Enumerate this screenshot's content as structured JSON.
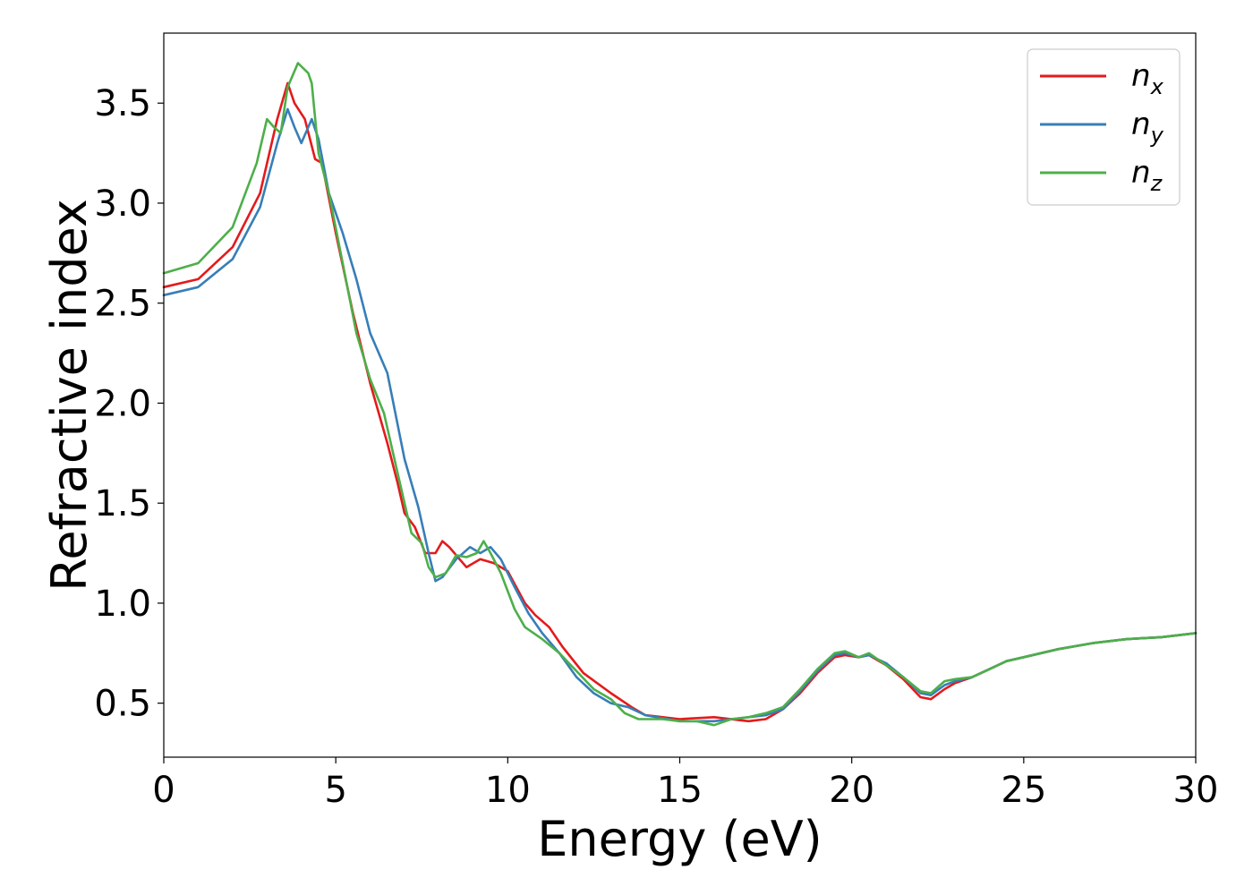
{
  "chart_data": {
    "type": "line",
    "title": "",
    "xlabel": "Energy (eV)",
    "ylabel": "Refractive index",
    "xlim": [
      0,
      30
    ],
    "ylim": [
      0.23,
      3.85
    ],
    "xticks": [
      0,
      5,
      10,
      15,
      20,
      25,
      30
    ],
    "xtick_labels": [
      "0",
      "5",
      "10",
      "15",
      "20",
      "25",
      "30"
    ],
    "yticks": [
      0.5,
      1.0,
      1.5,
      2.0,
      2.5,
      3.0,
      3.5
    ],
    "ytick_labels": [
      "0.5",
      "1.0",
      "1.5",
      "2.0",
      "2.5",
      "3.0",
      "3.5"
    ],
    "grid": false,
    "legend_position": "top-right",
    "series": [
      {
        "name": "n_x",
        "label_base": "n",
        "label_sub": "x",
        "color": "#e41a1c",
        "points": [
          [
            0,
            2.58
          ],
          [
            1,
            2.62
          ],
          [
            2,
            2.78
          ],
          [
            2.8,
            3.05
          ],
          [
            3.3,
            3.42
          ],
          [
            3.6,
            3.6
          ],
          [
            3.8,
            3.5
          ],
          [
            4.1,
            3.42
          ],
          [
            4.4,
            3.22
          ],
          [
            4.6,
            3.2
          ],
          [
            5,
            2.85
          ],
          [
            5.5,
            2.45
          ],
          [
            6,
            2.1
          ],
          [
            6.5,
            1.8
          ],
          [
            6.8,
            1.6
          ],
          [
            7.0,
            1.45
          ],
          [
            7.3,
            1.38
          ],
          [
            7.6,
            1.25
          ],
          [
            7.9,
            1.25
          ],
          [
            8.1,
            1.31
          ],
          [
            8.3,
            1.28
          ],
          [
            8.6,
            1.22
          ],
          [
            8.8,
            1.18
          ],
          [
            9.2,
            1.22
          ],
          [
            9.6,
            1.2
          ],
          [
            10,
            1.16
          ],
          [
            10.5,
            1.0
          ],
          [
            10.8,
            0.94
          ],
          [
            11.2,
            0.88
          ],
          [
            11.6,
            0.78
          ],
          [
            12.2,
            0.65
          ],
          [
            13,
            0.55
          ],
          [
            13.6,
            0.48
          ],
          [
            14,
            0.44
          ],
          [
            15,
            0.42
          ],
          [
            16,
            0.43
          ],
          [
            17,
            0.41
          ],
          [
            17.5,
            0.42
          ],
          [
            18,
            0.47
          ],
          [
            18.5,
            0.55
          ],
          [
            19,
            0.65
          ],
          [
            19.5,
            0.73
          ],
          [
            19.8,
            0.74
          ],
          [
            20.2,
            0.73
          ],
          [
            20.5,
            0.74
          ],
          [
            21,
            0.69
          ],
          [
            21.5,
            0.62
          ],
          [
            22,
            0.53
          ],
          [
            22.3,
            0.52
          ],
          [
            22.7,
            0.57
          ],
          [
            23,
            0.6
          ],
          [
            23.5,
            0.63
          ],
          [
            24,
            0.67
          ],
          [
            24.5,
            0.71
          ],
          [
            25,
            0.73
          ],
          [
            26,
            0.77
          ],
          [
            27,
            0.8
          ],
          [
            28,
            0.82
          ],
          [
            29,
            0.83
          ],
          [
            30,
            0.85
          ]
        ]
      },
      {
        "name": "n_y",
        "label_base": "n",
        "label_sub": "y",
        "color": "#377eb8",
        "points": [
          [
            0,
            2.54
          ],
          [
            1,
            2.58
          ],
          [
            2,
            2.72
          ],
          [
            2.8,
            2.98
          ],
          [
            3.3,
            3.3
          ],
          [
            3.6,
            3.47
          ],
          [
            3.8,
            3.38
          ],
          [
            4.0,
            3.3
          ],
          [
            4.3,
            3.42
          ],
          [
            4.5,
            3.32
          ],
          [
            4.8,
            3.05
          ],
          [
            5.2,
            2.85
          ],
          [
            5.6,
            2.62
          ],
          [
            6,
            2.35
          ],
          [
            6.5,
            2.15
          ],
          [
            7.0,
            1.72
          ],
          [
            7.4,
            1.48
          ],
          [
            7.7,
            1.25
          ],
          [
            7.9,
            1.11
          ],
          [
            8.1,
            1.13
          ],
          [
            8.5,
            1.22
          ],
          [
            8.9,
            1.28
          ],
          [
            9.2,
            1.25
          ],
          [
            9.5,
            1.28
          ],
          [
            9.8,
            1.22
          ],
          [
            10.2,
            1.08
          ],
          [
            10.6,
            0.95
          ],
          [
            11,
            0.85
          ],
          [
            11.5,
            0.75
          ],
          [
            12,
            0.63
          ],
          [
            12.5,
            0.55
          ],
          [
            13,
            0.5
          ],
          [
            13.5,
            0.48
          ],
          [
            14,
            0.44
          ],
          [
            15,
            0.41
          ],
          [
            16,
            0.41
          ],
          [
            17,
            0.43
          ],
          [
            17.5,
            0.44
          ],
          [
            18,
            0.47
          ],
          [
            18.5,
            0.56
          ],
          [
            19,
            0.66
          ],
          [
            19.5,
            0.74
          ],
          [
            19.8,
            0.75
          ],
          [
            20.2,
            0.73
          ],
          [
            20.5,
            0.74
          ],
          [
            21,
            0.7
          ],
          [
            21.5,
            0.63
          ],
          [
            22,
            0.55
          ],
          [
            22.3,
            0.54
          ],
          [
            22.7,
            0.59
          ],
          [
            23,
            0.61
          ],
          [
            23.5,
            0.63
          ],
          [
            24,
            0.67
          ],
          [
            24.5,
            0.71
          ],
          [
            25,
            0.73
          ],
          [
            26,
            0.77
          ],
          [
            27,
            0.8
          ],
          [
            28,
            0.82
          ],
          [
            29,
            0.83
          ],
          [
            30,
            0.85
          ]
        ]
      },
      {
        "name": "n_z",
        "label_base": "n",
        "label_sub": "z",
        "color": "#4daf4a",
        "points": [
          [
            0,
            2.65
          ],
          [
            1,
            2.7
          ],
          [
            2,
            2.88
          ],
          [
            2.7,
            3.2
          ],
          [
            3.0,
            3.42
          ],
          [
            3.2,
            3.38
          ],
          [
            3.4,
            3.35
          ],
          [
            3.6,
            3.58
          ],
          [
            3.9,
            3.7
          ],
          [
            4.2,
            3.65
          ],
          [
            4.3,
            3.6
          ],
          [
            4.5,
            3.25
          ],
          [
            4.8,
            3.05
          ],
          [
            5.2,
            2.7
          ],
          [
            5.6,
            2.35
          ],
          [
            6,
            2.12
          ],
          [
            6.4,
            1.95
          ],
          [
            6.8,
            1.65
          ],
          [
            7.2,
            1.35
          ],
          [
            7.5,
            1.3
          ],
          [
            7.7,
            1.18
          ],
          [
            7.9,
            1.13
          ],
          [
            8.2,
            1.15
          ],
          [
            8.5,
            1.24
          ],
          [
            8.8,
            1.23
          ],
          [
            9.1,
            1.25
          ],
          [
            9.3,
            1.31
          ],
          [
            9.5,
            1.25
          ],
          [
            9.8,
            1.15
          ],
          [
            10.2,
            0.97
          ],
          [
            10.5,
            0.88
          ],
          [
            11,
            0.82
          ],
          [
            11.5,
            0.75
          ],
          [
            12,
            0.66
          ],
          [
            12.5,
            0.57
          ],
          [
            13,
            0.52
          ],
          [
            13.4,
            0.45
          ],
          [
            13.8,
            0.42
          ],
          [
            14.5,
            0.42
          ],
          [
            15,
            0.41
          ],
          [
            15.5,
            0.41
          ],
          [
            16,
            0.39
          ],
          [
            16.5,
            0.42
          ],
          [
            17,
            0.43
          ],
          [
            17.5,
            0.45
          ],
          [
            18,
            0.48
          ],
          [
            18.5,
            0.57
          ],
          [
            19,
            0.67
          ],
          [
            19.5,
            0.75
          ],
          [
            19.8,
            0.76
          ],
          [
            20.2,
            0.73
          ],
          [
            20.5,
            0.75
          ],
          [
            21,
            0.69
          ],
          [
            21.5,
            0.63
          ],
          [
            22,
            0.56
          ],
          [
            22.3,
            0.55
          ],
          [
            22.7,
            0.61
          ],
          [
            23,
            0.62
          ],
          [
            23.5,
            0.63
          ],
          [
            24,
            0.67
          ],
          [
            24.5,
            0.71
          ],
          [
            25,
            0.73
          ],
          [
            26,
            0.77
          ],
          [
            27,
            0.8
          ],
          [
            28,
            0.82
          ],
          [
            29,
            0.83
          ],
          [
            30,
            0.85
          ]
        ]
      }
    ]
  }
}
